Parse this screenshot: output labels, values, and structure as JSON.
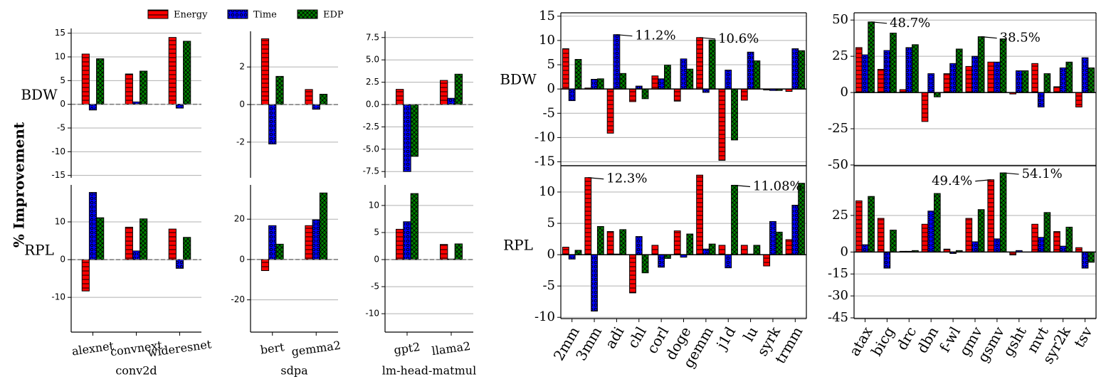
{
  "chart_data": [
    {
      "type": "bar",
      "ylabel": "% Improvement",
      "row_label": "BDW",
      "ylim": [
        -15.5,
        16
      ],
      "yticks": [
        -15,
        -10,
        -5,
        0,
        5,
        10,
        15
      ],
      "grid": true,
      "zero_line": "dashed",
      "spines": [
        "left"
      ],
      "series": [
        {
          "name": "Energy",
          "color": "#ff0000",
          "values": [
            10.6,
            6.4,
            14.1
          ]
        },
        {
          "name": "Time",
          "color": "#0000ff",
          "values": [
            -1.2,
            0.5,
            -0.8
          ]
        },
        {
          "name": "EDP",
          "color": "#008000",
          "values": [
            9.6,
            7.0,
            13.3
          ]
        }
      ]
    },
    {
      "type": "bar",
      "row_label": "RPL",
      "xlabel": "conv2d",
      "categories": [
        "alexnet",
        "convnext",
        "wideresnet"
      ],
      "ylim": [
        -19.2,
        19.8
      ],
      "yticks": [
        -10,
        0,
        10
      ],
      "grid": true,
      "zero_line": "dashed",
      "spines": [
        "left",
        "bottom"
      ],
      "series": [
        {
          "name": "Energy",
          "color": "#ff0000",
          "values": [
            -8.3,
            8.6,
            8.1
          ]
        },
        {
          "name": "Time",
          "color": "#0000ff",
          "values": [
            17.8,
            2.3,
            -2.3
          ]
        },
        {
          "name": "EDP",
          "color": "#008000",
          "values": [
            11.1,
            10.8,
            5.9
          ]
        }
      ]
    },
    {
      "type": "bar",
      "ylim": [
        -3.9,
        3.9
      ],
      "yticks": [
        -2,
        0,
        2
      ],
      "grid": true,
      "zero_line": "dashed",
      "spines": [
        "left"
      ],
      "series": [
        {
          "name": "Energy",
          "color": "#ff0000",
          "values": [
            3.5,
            0.8
          ]
        },
        {
          "name": "Time",
          "color": "#0000ff",
          "values": [
            -2.1,
            -0.25
          ]
        },
        {
          "name": "EDP",
          "color": "#008000",
          "values": [
            1.5,
            0.55
          ]
        }
      ]
    },
    {
      "type": "bar",
      "xlabel": "sdpa",
      "categories": [
        "bert",
        "gemma2"
      ],
      "ylim": [
        -36,
        37
      ],
      "yticks": [
        -20,
        0,
        20
      ],
      "grid": true,
      "zero_line": "dashed",
      "spines": [
        "left",
        "bottom"
      ],
      "series": [
        {
          "name": "Energy",
          "color": "#ff0000",
          "values": [
            -5.5,
            16.8
          ]
        },
        {
          "name": "Time",
          "color": "#0000ff",
          "values": [
            16.8,
            19.7
          ]
        },
        {
          "name": "EDP",
          "color": "#008000",
          "values": [
            7.6,
            33
          ]
        }
      ]
    },
    {
      "type": "bar",
      "ylim": [
        -8.2,
        8.2
      ],
      "yticks": [
        -7.5,
        {
          "value": -5,
          "label": "-5.0"
        },
        -2.5,
        {
          "value": 0,
          "label": "0.0"
        },
        2.5,
        {
          "value": 5,
          "label": "5.0"
        },
        7.5
      ],
      "grid": true,
      "zero_line": "dashed",
      "spines": [
        "left"
      ],
      "series": [
        {
          "name": "Energy",
          "color": "#ff0000",
          "values": [
            1.7,
            2.7
          ]
        },
        {
          "name": "Time",
          "color": "#0000ff",
          "values": [
            -7.5,
            0.7
          ]
        },
        {
          "name": "EDP",
          "color": "#008000",
          "values": [
            -5.8,
            3.4
          ]
        }
      ]
    },
    {
      "type": "bar",
      "xlabel": "lm-head-matmul",
      "categories": [
        "gpt2",
        "llama2"
      ],
      "ylim": [
        -13.4,
        13.8
      ],
      "yticks": [
        -10,
        -5,
        0,
        5,
        10
      ],
      "grid": true,
      "zero_line": "dashed",
      "spines": [
        "left",
        "bottom"
      ],
      "series": [
        {
          "name": "Energy",
          "color": "#ff0000",
          "values": [
            5.6,
            2.8
          ]
        },
        {
          "name": "Time",
          "color": "#0000ff",
          "values": [
            7.0,
            0.1
          ]
        },
        {
          "name": "EDP",
          "color": "#008000",
          "values": [
            12.2,
            2.9
          ]
        }
      ]
    },
    {
      "type": "bar",
      "row_label": "BDW",
      "ylim": [
        -15.8,
        15.7
      ],
      "yticks": [
        -15,
        -10,
        -5,
        0,
        5,
        10,
        15
      ],
      "grid": true,
      "zero_line": "solid",
      "spines": [
        "left",
        "right",
        "top",
        "bottom"
      ],
      "series": [
        {
          "name": "Energy",
          "color": "#ff0000",
          "values": [
            8.3,
            0.2,
            -9.1,
            -2.6,
            2.7,
            -2.5,
            10.6,
            -14.7,
            -2.3,
            -0.2,
            -0.5
          ],
          "value_labels": [
            null,
            null,
            null,
            null,
            null,
            null,
            "10.6%",
            null,
            null,
            null,
            null
          ]
        },
        {
          "name": "Time",
          "color": "#0000ff",
          "values": [
            -2.4,
            2.0,
            11.2,
            0.6,
            2.1,
            6.2,
            -0.7,
            3.9,
            7.6,
            -0.3,
            8.3
          ],
          "value_labels": [
            null,
            null,
            "11.2%",
            null,
            null,
            null,
            null,
            null,
            null,
            null,
            null
          ]
        },
        {
          "name": "EDP",
          "color": "#008000",
          "values": [
            6.1,
            2.1,
            3.2,
            -2.0,
            4.9,
            4.1,
            10.1,
            -10.5,
            5.8,
            -0.3,
            7.9
          ]
        }
      ]
    },
    {
      "type": "bar",
      "row_label": "RPL",
      "categories": [
        "2mm",
        "3mm",
        "adi",
        "chl",
        "corl",
        "doge",
        "gemm",
        "j1d",
        "lu",
        "syrk",
        "trmm"
      ],
      "ylim": [
        -10.2,
        14.2
      ],
      "yticks": [
        -10,
        -5,
        0,
        5,
        10
      ],
      "grid": true,
      "zero_line": "solid",
      "spines": [
        "left",
        "right",
        "top",
        "bottom"
      ],
      "series": [
        {
          "name": "Energy",
          "color": "#ff0000",
          "values": [
            1.2,
            12.3,
            3.7,
            -6.1,
            1.5,
            3.8,
            12.7,
            1.5,
            1.5,
            -1.8,
            2.4
          ],
          "value_labels": [
            null,
            "12.3%",
            null,
            null,
            null,
            null,
            null,
            null,
            null,
            null,
            null
          ]
        },
        {
          "name": "Time",
          "color": "#0000ff",
          "values": [
            -0.7,
            -9.0,
            0.1,
            2.9,
            -2.0,
            -0.4,
            0.9,
            -2.1,
            0.1,
            5.3,
            7.9
          ]
        },
        {
          "name": "EDP",
          "color": "#008000",
          "values": [
            0.7,
            4.5,
            4.0,
            -2.9,
            -0.6,
            3.3,
            1.7,
            11.08,
            1.5,
            3.6,
            11.4
          ],
          "value_labels": [
            null,
            null,
            null,
            null,
            null,
            null,
            null,
            "11.08%",
            null,
            null,
            null
          ]
        }
      ]
    },
    {
      "type": "bar",
      "ylim": [
        -50.5,
        55
      ],
      "yticks": [
        -50,
        -25,
        0,
        25,
        50
      ],
      "grid": true,
      "zero_line": "solid",
      "spines": [
        "left",
        "right",
        "top",
        "bottom"
      ],
      "series": [
        {
          "name": "Energy",
          "color": "#ff0000",
          "values": [
            31,
            16,
            2,
            -20,
            13,
            18,
            21,
            -1,
            20,
            4,
            -10
          ]
        },
        {
          "name": "Time",
          "color": "#0000ff",
          "values": [
            26,
            29,
            31,
            13,
            20,
            25,
            21,
            15,
            -10,
            17,
            24
          ]
        },
        {
          "name": "EDP",
          "color": "#008000",
          "values": [
            48.7,
            41,
            33,
            -3,
            30,
            38.5,
            37,
            15,
            13,
            21,
            17
          ],
          "value_labels": [
            "48.7%",
            null,
            null,
            null,
            null,
            "38.5%",
            null,
            null,
            null,
            null,
            null
          ]
        }
      ]
    },
    {
      "type": "bar",
      "categories": [
        "atax",
        "bicg",
        "drc",
        "dbn",
        "f-wl",
        "gmv",
        "gsmv",
        "gsht",
        "mvt",
        "syr2k",
        "tsv"
      ],
      "ylim": [
        -45.5,
        59
      ],
      "yticks": [
        -45,
        -30,
        -15,
        0,
        25
      ],
      "grid": true,
      "zero_line": "solid",
      "spines": [
        "left",
        "right",
        "top",
        "bottom"
      ],
      "series": [
        {
          "name": "Energy",
          "color": "#ff0000",
          "values": [
            35,
            23,
            0.5,
            19,
            2,
            23,
            49.4,
            -2,
            19,
            14,
            3
          ],
          "value_labels": [
            null,
            null,
            null,
            null,
            null,
            null,
            "49.4%",
            null,
            null,
            null,
            null
          ]
        },
        {
          "name": "Time",
          "color": "#0000ff",
          "values": [
            5,
            -11,
            0.5,
            28,
            -1,
            7,
            9,
            1,
            10,
            4,
            -11
          ]
        },
        {
          "name": "EDP",
          "color": "#008000",
          "values": [
            38,
            15,
            1,
            40,
            1,
            29,
            54.1,
            0,
            27,
            17,
            -7
          ],
          "value_labels": [
            null,
            null,
            null,
            null,
            null,
            null,
            "54.1%",
            null,
            null,
            null,
            null
          ]
        }
      ]
    }
  ]
}
